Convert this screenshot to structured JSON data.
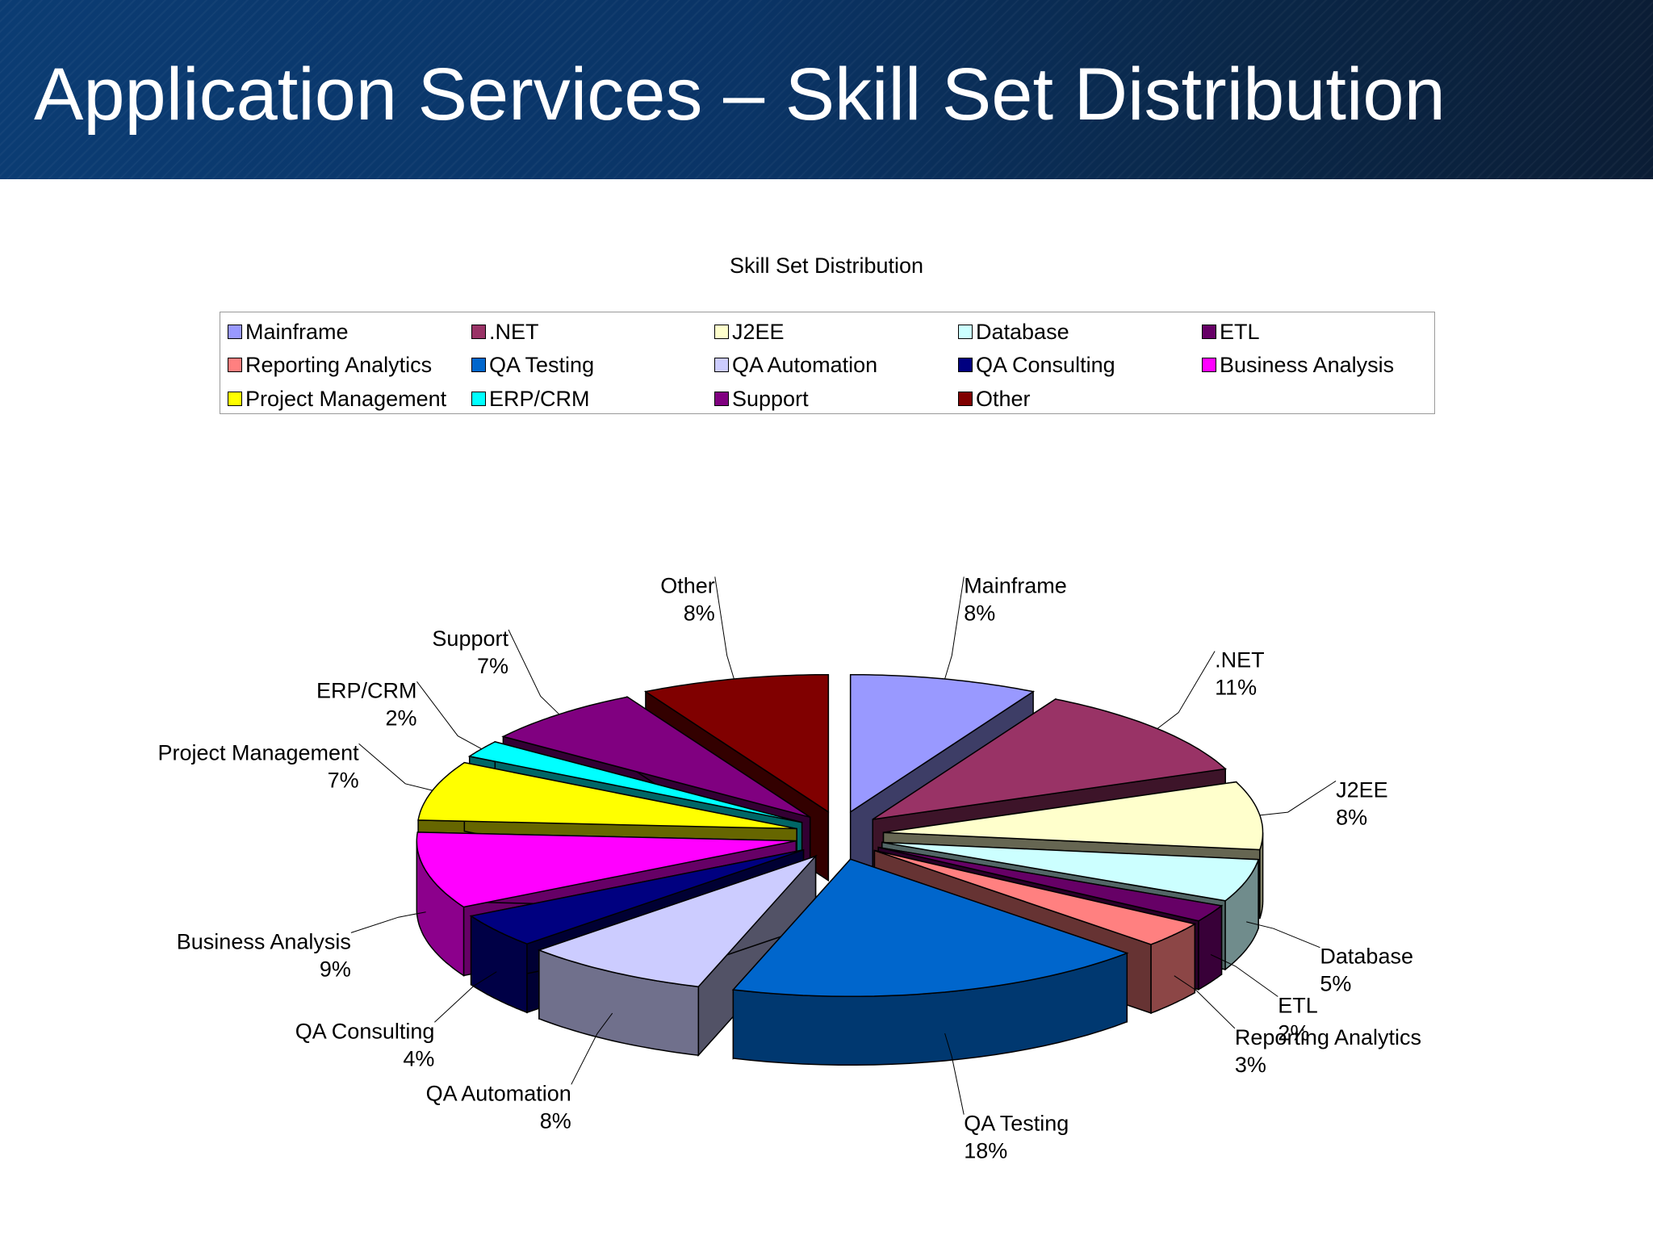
{
  "slide": {
    "title": "Application Services – Skill Set Distribution"
  },
  "chart_data": {
    "type": "pie",
    "title": "Skill Set Distribution",
    "legend_position": "top",
    "exploded": true,
    "slices": [
      {
        "name": "Mainframe",
        "value": 8,
        "label": "8%",
        "color": "#9999ff"
      },
      {
        "name": ".NET",
        "value": 11,
        "label": "11%",
        "color": "#993366"
      },
      {
        "name": "J2EE",
        "value": 8,
        "label": "8%",
        "color": "#ffffcc"
      },
      {
        "name": "Database",
        "value": 5,
        "label": "5%",
        "color": "#ccffff"
      },
      {
        "name": "ETL",
        "value": 2,
        "label": "2%",
        "color": "#660066"
      },
      {
        "name": "Reporting Analytics",
        "value": 3,
        "label": "3%",
        "color": "#ff8080"
      },
      {
        "name": "QA Testing",
        "value": 18,
        "label": "18%",
        "color": "#0066cc"
      },
      {
        "name": "QA Automation",
        "value": 8,
        "label": "8%",
        "color": "#ccccff"
      },
      {
        "name": "QA Consulting",
        "value": 4,
        "label": "4%",
        "color": "#000080"
      },
      {
        "name": "Business Analysis",
        "value": 9,
        "label": "9%",
        "color": "#ff00ff"
      },
      {
        "name": "Project Management",
        "value": 7,
        "label": "7%",
        "color": "#ffff00"
      },
      {
        "name": "ERP/CRM",
        "value": 2,
        "label": "2%",
        "color": "#00ffff"
      },
      {
        "name": "Support",
        "value": 7,
        "label": "7%",
        "color": "#800080"
      },
      {
        "name": "Other",
        "value": 8,
        "label": "8%",
        "color": "#800000"
      }
    ]
  }
}
